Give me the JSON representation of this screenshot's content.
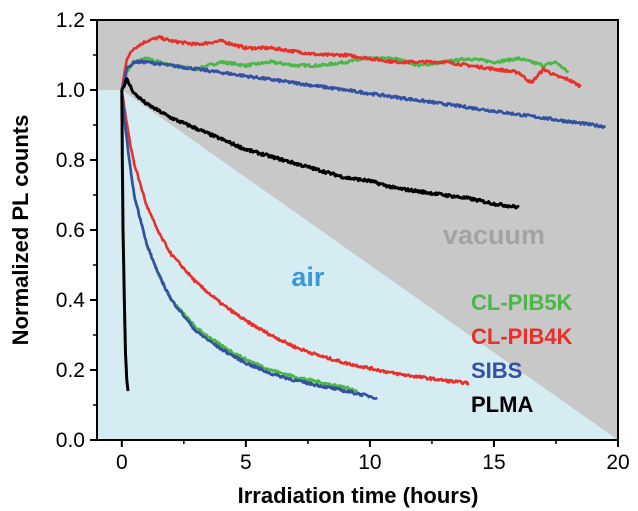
{
  "chart_data": {
    "type": "line",
    "xlabel": "Irradiation time (hours)",
    "ylabel": "Normalized PL counts",
    "xlim": [
      -1,
      20
    ],
    "ylim": [
      0,
      1.2
    ],
    "xticks": [
      0,
      5,
      10,
      15,
      20
    ],
    "yticks": [
      0.0,
      0.2,
      0.4,
      0.6,
      0.8,
      1.0,
      1.2
    ],
    "grid": false,
    "legend_position": "bottom-right",
    "colors": {
      "vacuum_region": "#c8c8c8",
      "air_region": "#d6ecf3",
      "vacuum_text": "#a3a3a3",
      "air_text": "#3a9ad9"
    },
    "regions": [
      {
        "label": "vacuum",
        "color": "#c8c8c8"
      },
      {
        "label": "air",
        "color": "#d6ecf3"
      }
    ],
    "series": [
      {
        "name": "CL-PIB5K",
        "color": "#4bb748",
        "condition": "vacuum",
        "x": [
          0,
          0.2,
          0.5,
          1,
          2,
          3,
          4,
          5,
          6,
          7,
          8,
          9,
          10,
          11,
          12,
          13,
          14,
          15,
          16,
          17,
          17.5,
          18
        ],
        "y": [
          1.0,
          1.05,
          1.08,
          1.09,
          1.07,
          1.06,
          1.08,
          1.07,
          1.08,
          1.07,
          1.07,
          1.08,
          1.09,
          1.09,
          1.07,
          1.08,
          1.09,
          1.08,
          1.09,
          1.07,
          1.08,
          1.05
        ]
      },
      {
        "name": "CL-PIB4K",
        "color": "#e8302a",
        "condition": "vacuum",
        "x": [
          0,
          0.2,
          0.5,
          1,
          1.5,
          2,
          3,
          4,
          5,
          6,
          7,
          8,
          9,
          10,
          11,
          12,
          13,
          14,
          15,
          16,
          16.5,
          17,
          17.5,
          18,
          18.5
        ],
        "y": [
          1.0,
          1.09,
          1.12,
          1.14,
          1.15,
          1.14,
          1.13,
          1.14,
          1.12,
          1.12,
          1.11,
          1.1,
          1.1,
          1.09,
          1.08,
          1.08,
          1.08,
          1.07,
          1.06,
          1.05,
          1.02,
          1.06,
          1.04,
          1.03,
          1.01
        ]
      },
      {
        "name": "SIBS",
        "color": "#3450a3",
        "condition": "vacuum",
        "x": [
          0,
          0.2,
          0.5,
          1,
          2,
          3,
          4,
          5,
          6,
          7,
          8,
          9,
          10,
          11,
          12,
          13,
          14,
          15,
          16,
          17,
          18,
          19,
          19.5
        ],
        "y": [
          1.0,
          1.06,
          1.08,
          1.08,
          1.07,
          1.06,
          1.05,
          1.04,
          1.03,
          1.02,
          1.01,
          1.0,
          0.99,
          0.98,
          0.97,
          0.96,
          0.95,
          0.94,
          0.93,
          0.92,
          0.91,
          0.9,
          0.895
        ]
      },
      {
        "name": "PLMA",
        "color": "#000000",
        "condition": "vacuum",
        "x": [
          0,
          0.2,
          0.5,
          1,
          2,
          3,
          4,
          5,
          6,
          7,
          8,
          9,
          10,
          11,
          12,
          13,
          14,
          15,
          16
        ],
        "y": [
          1.0,
          1.03,
          0.99,
          0.96,
          0.92,
          0.89,
          0.86,
          0.83,
          0.81,
          0.79,
          0.77,
          0.75,
          0.74,
          0.72,
          0.71,
          0.7,
          0.69,
          0.675,
          0.665
        ]
      },
      {
        "name": "CL-PIB5K",
        "color": "#4bb748",
        "condition": "air",
        "x": [
          0,
          0.1,
          0.3,
          0.5,
          1,
          1.5,
          2,
          3,
          4,
          5,
          6,
          7,
          8,
          9,
          9.5
        ],
        "y": [
          1.0,
          0.92,
          0.8,
          0.7,
          0.56,
          0.47,
          0.4,
          0.32,
          0.27,
          0.23,
          0.2,
          0.18,
          0.165,
          0.15,
          0.14
        ]
      },
      {
        "name": "CL-PIB4K",
        "color": "#e8302a",
        "condition": "air",
        "x": [
          0,
          0.1,
          0.3,
          0.5,
          1,
          1.5,
          2,
          3,
          4,
          5,
          6,
          7,
          8,
          9,
          10,
          11,
          12,
          13,
          14
        ],
        "y": [
          1.0,
          0.95,
          0.86,
          0.79,
          0.67,
          0.59,
          0.53,
          0.45,
          0.39,
          0.34,
          0.3,
          0.265,
          0.24,
          0.22,
          0.205,
          0.19,
          0.18,
          0.17,
          0.162
        ]
      },
      {
        "name": "SIBS",
        "color": "#3450a3",
        "condition": "air",
        "x": [
          0,
          0.1,
          0.3,
          0.5,
          1,
          1.5,
          2,
          3,
          4,
          5,
          6,
          7,
          8,
          9,
          10,
          10.3
        ],
        "y": [
          1.0,
          0.92,
          0.8,
          0.7,
          0.56,
          0.47,
          0.4,
          0.31,
          0.26,
          0.22,
          0.19,
          0.17,
          0.155,
          0.14,
          0.125,
          0.12
        ]
      },
      {
        "name": "PLMA",
        "color": "#000000",
        "condition": "air",
        "x": [
          0,
          0.02,
          0.05,
          0.1,
          0.15,
          0.2,
          0.25
        ],
        "y": [
          1.0,
          0.8,
          0.6,
          0.4,
          0.25,
          0.17,
          0.14
        ]
      }
    ],
    "legend": [
      {
        "label": "CL-PIB5K",
        "color": "#4bb748"
      },
      {
        "label": "CL-PIB4K",
        "color": "#e8302a"
      },
      {
        "label": "SIBS",
        "color": "#3450a3"
      },
      {
        "label": "PLMA",
        "color": "#000000"
      }
    ]
  }
}
